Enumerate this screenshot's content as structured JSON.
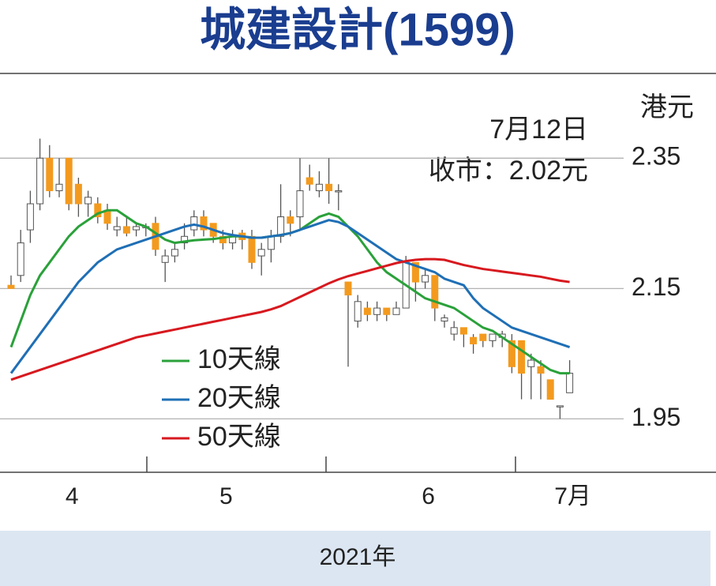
{
  "chart_data": {
    "type": "candlestick",
    "title": "城建設計(1599)",
    "unit": "港元",
    "annotations": [
      "7月12日",
      "收市：2.02元"
    ],
    "xlabel": "2021年",
    "categories": [
      null,
      null,
      null,
      null,
      null,
      null,
      "4",
      null,
      null,
      null,
      null,
      null,
      null,
      null,
      null,
      null,
      null,
      null,
      null,
      null,
      null,
      null,
      "5",
      null,
      null,
      null,
      null,
      null,
      null,
      null,
      null,
      null,
      null,
      null,
      null,
      null,
      null,
      null,
      null,
      null,
      null,
      null,
      null,
      "6",
      null,
      null,
      null,
      null,
      null,
      null,
      null,
      null,
      null,
      null,
      null,
      null,
      null,
      null,
      "7月"
    ],
    "open": [
      2.155,
      2.17,
      2.24,
      2.28,
      2.35,
      2.3,
      2.35,
      2.31,
      2.28,
      2.28,
      2.27,
      2.24,
      2.245,
      2.24,
      2.245,
      2.25,
      2.19,
      2.2,
      2.22,
      2.24,
      2.26,
      2.25,
      2.23,
      2.22,
      2.235,
      2.23,
      2.2,
      2.21,
      2.23,
      2.26,
      2.26,
      2.32,
      2.3,
      2.31,
      2.3,
      2.16,
      2.1,
      2.12,
      2.11,
      2.12,
      2.11,
      2.12,
      2.19,
      2.16,
      2.17,
      2.1,
      2.08,
      2.09,
      2.075,
      2.08,
      2.07,
      2.075,
      2.07,
      2.07,
      2.03,
      2.03,
      2.01,
      1.97,
      1.99
    ],
    "high": [
      2.17,
      2.24,
      2.3,
      2.38,
      2.37,
      2.35,
      2.35,
      2.32,
      2.3,
      2.29,
      2.28,
      2.26,
      2.26,
      2.25,
      2.25,
      2.26,
      2.21,
      2.22,
      2.25,
      2.27,
      2.27,
      2.25,
      2.24,
      2.24,
      2.24,
      2.24,
      2.22,
      2.24,
      2.31,
      2.27,
      2.35,
      2.34,
      2.33,
      2.35,
      2.31,
      2.16,
      2.14,
      2.13,
      2.13,
      2.12,
      2.13,
      2.2,
      2.19,
      2.18,
      2.17,
      2.11,
      2.1,
      2.09,
      2.08,
      2.08,
      2.08,
      2.085,
      2.08,
      2.07,
      2.05,
      2.04,
      2.01,
      1.97,
      2.04
    ],
    "low": [
      2.15,
      2.16,
      2.22,
      2.27,
      2.29,
      2.29,
      2.27,
      2.26,
      2.26,
      2.25,
      2.24,
      2.23,
      2.23,
      2.23,
      2.23,
      2.2,
      2.16,
      2.19,
      2.21,
      2.23,
      2.23,
      2.22,
      2.21,
      2.21,
      2.21,
      2.18,
      2.17,
      2.19,
      2.22,
      2.23,
      2.24,
      2.3,
      2.29,
      2.28,
      2.27,
      2.03,
      2.09,
      2.1,
      2.1,
      2.1,
      2.11,
      2.12,
      2.13,
      2.15,
      2.1,
      2.09,
      2.07,
      2.06,
      2.05,
      2.06,
      2.06,
      2.06,
      2.02,
      1.98,
      1.98,
      1.98,
      1.98,
      1.95,
      1.99
    ],
    "close": [
      2.15,
      2.22,
      2.28,
      2.35,
      2.3,
      2.31,
      2.28,
      2.28,
      2.29,
      2.26,
      2.25,
      2.245,
      2.235,
      2.245,
      2.245,
      2.21,
      2.2,
      2.21,
      2.23,
      2.26,
      2.24,
      2.23,
      2.22,
      2.23,
      2.225,
      2.19,
      2.21,
      2.23,
      2.26,
      2.25,
      2.3,
      2.31,
      2.31,
      2.3,
      2.3,
      2.14,
      2.13,
      2.11,
      2.12,
      2.11,
      2.12,
      2.19,
      2.16,
      2.17,
      2.12,
      2.105,
      2.09,
      2.08,
      2.065,
      2.07,
      2.08,
      2.08,
      2.03,
      2.02,
      2.04,
      2.02,
      1.98,
      1.97,
      2.02
    ],
    "up_color": "#ffffff",
    "down_color": "#f39a1e",
    "series": [
      {
        "name": "10天線",
        "color": "#2aa13a",
        "values": [
          2.06,
          2.1,
          2.14,
          2.17,
          2.19,
          2.21,
          2.23,
          2.245,
          2.255,
          2.265,
          2.27,
          2.27,
          2.26,
          2.25,
          2.245,
          2.235,
          2.225,
          2.22,
          2.222,
          2.224,
          2.225,
          2.226,
          2.228,
          2.23,
          2.23,
          2.228,
          2.228,
          2.23,
          2.232,
          2.235,
          2.24,
          2.25,
          2.26,
          2.265,
          2.26,
          2.245,
          2.23,
          2.21,
          2.19,
          2.175,
          2.165,
          2.155,
          2.145,
          2.135,
          2.13,
          2.125,
          2.12,
          2.11,
          2.1,
          2.09,
          2.085,
          2.075,
          2.065,
          2.055,
          2.045,
          2.035,
          2.025,
          2.02,
          2.02
        ]
      },
      {
        "name": "20天線",
        "color": "#1f6fb5",
        "values": [
          2.02,
          2.04,
          2.06,
          2.08,
          2.1,
          2.12,
          2.14,
          2.16,
          2.175,
          2.19,
          2.2,
          2.21,
          2.215,
          2.22,
          2.225,
          2.23,
          2.235,
          2.24,
          2.245,
          2.248,
          2.245,
          2.24,
          2.235,
          2.232,
          2.23,
          2.228,
          2.228,
          2.23,
          2.232,
          2.235,
          2.24,
          2.245,
          2.25,
          2.255,
          2.252,
          2.245,
          2.235,
          2.225,
          2.215,
          2.205,
          2.195,
          2.19,
          2.185,
          2.18,
          2.175,
          2.165,
          2.16,
          2.155,
          2.135,
          2.12,
          2.11,
          2.1,
          2.09,
          2.085,
          2.08,
          2.075,
          2.07,
          2.065,
          2.06
        ]
      },
      {
        "name": "50天線",
        "color": "#d7191f",
        "values": [
          2.01,
          2.015,
          2.02,
          2.025,
          2.03,
          2.035,
          2.04,
          2.045,
          2.05,
          2.055,
          2.06,
          2.065,
          2.07,
          2.075,
          2.078,
          2.081,
          2.084,
          2.087,
          2.09,
          2.093,
          2.096,
          2.099,
          2.102,
          2.105,
          2.108,
          2.111,
          2.114,
          2.118,
          2.123,
          2.13,
          2.137,
          2.144,
          2.151,
          2.158,
          2.164,
          2.169,
          2.173,
          2.177,
          2.181,
          2.185,
          2.189,
          2.192,
          2.194,
          2.195,
          2.195,
          2.194,
          2.19,
          2.186,
          2.183,
          2.18,
          2.178,
          2.176,
          2.174,
          2.172,
          2.17,
          2.168,
          2.165,
          2.162,
          2.16
        ]
      }
    ],
    "ylim": [
      1.868,
      2.48
    ],
    "yticks": [
      2.35,
      2.15,
      1.95
    ],
    "grid": true
  }
}
